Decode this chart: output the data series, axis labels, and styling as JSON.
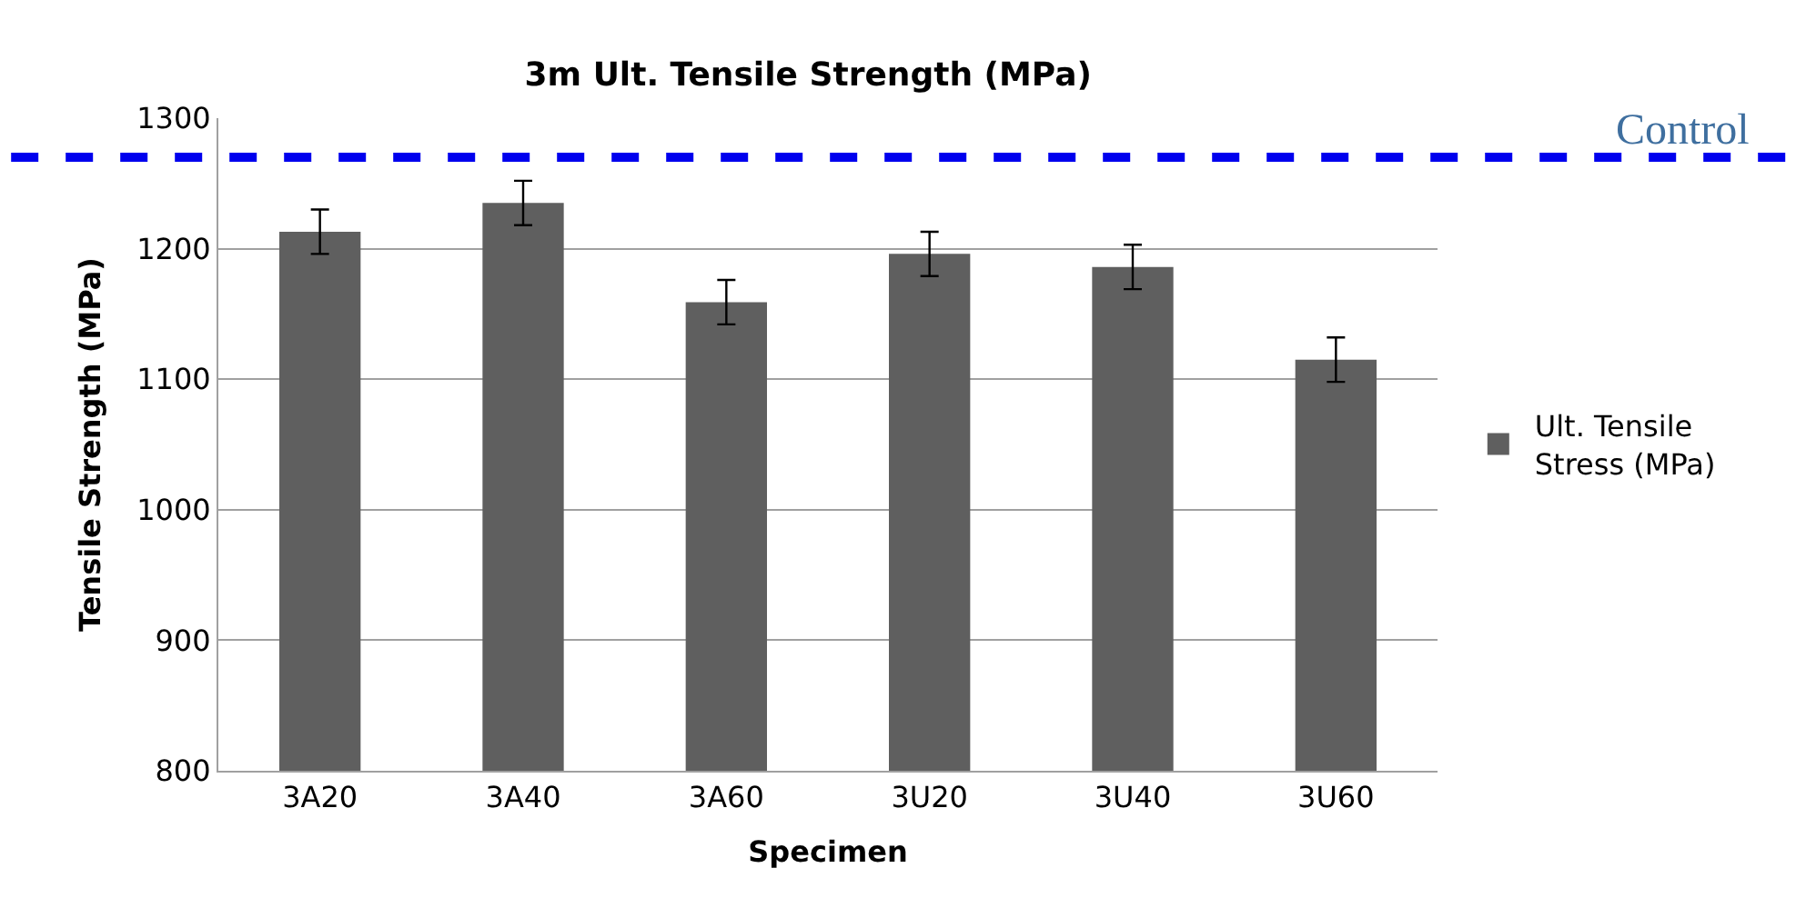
{
  "chart_data": {
    "type": "bar",
    "title": "3m Ult. Tensile Strength (MPa)",
    "xlabel": "Specimen",
    "ylabel": "Tensile Strength (MPa)",
    "categories": [
      "3A20",
      "3A40",
      "3A60",
      "3U20",
      "3U40",
      "3U60"
    ],
    "series": [
      {
        "name": "Ult. Tensile Stress (MPa)",
        "color": "#5f5f5f",
        "values": [
          1213,
          1235,
          1159,
          1196,
          1186,
          1115
        ],
        "errors": [
          17,
          17,
          17,
          17,
          17,
          17
        ]
      }
    ],
    "ylim": [
      800,
      1300
    ],
    "yticks": [
      800,
      900,
      1000,
      1100,
      1200,
      1300
    ],
    "grid": "y",
    "legend": "right",
    "ref_lines": [
      {
        "axis": "y",
        "value": 1270,
        "label": "Control",
        "color": "#0000ee",
        "line_style": "dashed"
      }
    ]
  }
}
